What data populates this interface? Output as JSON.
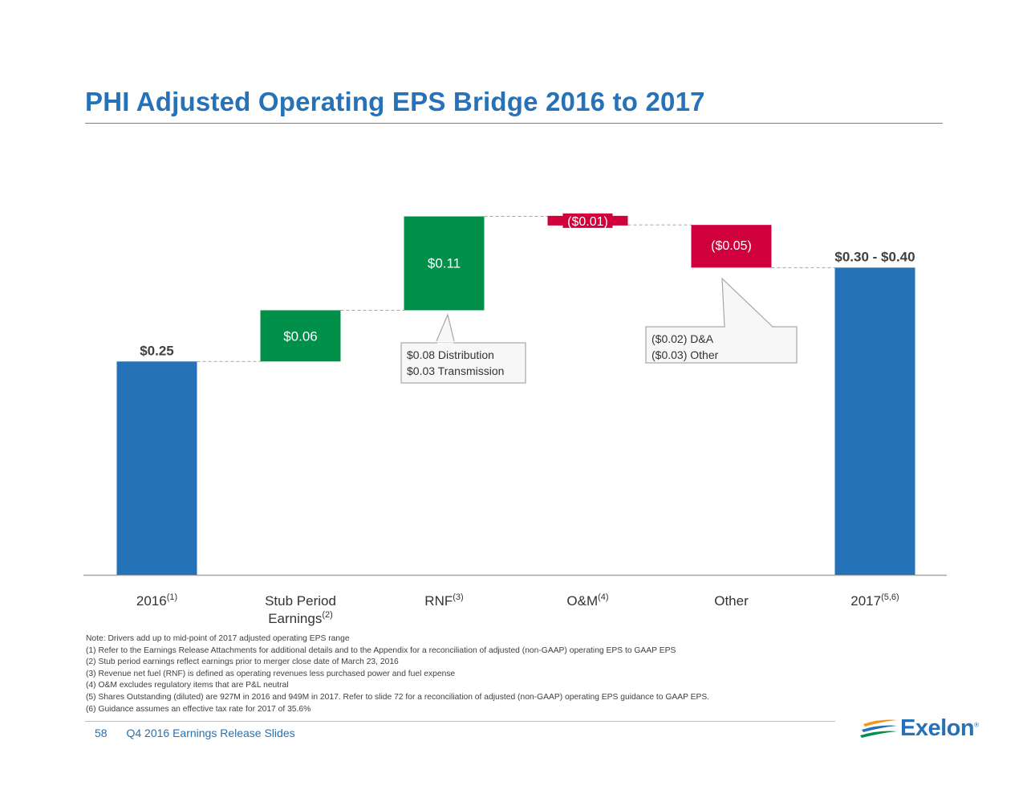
{
  "page": {
    "title": "PHI Adjusted Operating EPS Bridge 2016 to 2017",
    "footer_page": "58",
    "footer_text": "Q4 2016  Earnings Release Slides",
    "logo_text": "Exelon",
    "logo_mark": "®"
  },
  "colors": {
    "blue": "#2572b8",
    "green": "#00904a",
    "red": "#d0003c",
    "title": "#2572b8"
  },
  "chart_data": {
    "type": "bar",
    "subtype": "waterfall",
    "title": "PHI Adjusted Operating EPS Bridge 2016 to 2017",
    "ylim": [
      0,
      0.5
    ],
    "categories": [
      {
        "label": "2016",
        "sup": "(1)",
        "label2": "",
        "sup2": ""
      },
      {
        "label": "Stub Period",
        "sup": "",
        "label2": "Earnings",
        "sup2": "(2)"
      },
      {
        "label": "RNF",
        "sup": "(3)",
        "label2": "",
        "sup2": ""
      },
      {
        "label": "O&M",
        "sup": "(4)",
        "label2": "",
        "sup2": ""
      },
      {
        "label": "Other",
        "sup": "",
        "label2": "",
        "sup2": ""
      },
      {
        "label": "2017",
        "sup": "(5,6)",
        "label2": "",
        "sup2": ""
      }
    ],
    "bars": [
      {
        "kind": "total",
        "start": 0,
        "end": 0.25,
        "label": "$0.25",
        "color": "#2572b8"
      },
      {
        "kind": "increase",
        "start": 0.25,
        "end": 0.31,
        "label": "$0.06",
        "color": "#00904a"
      },
      {
        "kind": "increase",
        "start": 0.31,
        "end": 0.42,
        "label": "$0.11",
        "color": "#00904a"
      },
      {
        "kind": "decrease",
        "start": 0.42,
        "end": 0.41,
        "label": "($0.01)",
        "color": "#d0003c"
      },
      {
        "kind": "decrease",
        "start": 0.41,
        "end": 0.36,
        "label": "($0.05)",
        "color": "#d0003c"
      },
      {
        "kind": "total",
        "start": 0,
        "end": 0.36,
        "label": "$0.30 - $0.40",
        "color": "#2572b8"
      }
    ],
    "callouts": [
      {
        "bar": 2,
        "lines": [
          "$0.08 Distribution",
          "$0.03 Transmission"
        ]
      },
      {
        "bar": 4,
        "lines": [
          "($0.02) D&A",
          "($0.03) Other"
        ]
      }
    ]
  },
  "notes": [
    "Note: Drivers add up to mid-point of 2017 adjusted operating EPS range",
    "(1) Refer to the Earnings Release Attachments for additional details and to the Appendix for a reconciliation of adjusted (non-GAAP) operating EPS to GAAP EPS",
    "(2) Stub period earnings reflect earnings prior to merger close date of March 23, 2016",
    "(3) Revenue net fuel (RNF) is defined as operating revenues less purchased power and fuel expense",
    "(4) O&M excludes regulatory items that are P&L neutral",
    "(5) Shares Outstanding (diluted) are 927M in 2016 and 949M in 2017. Refer to slide 72 for a reconciliation of adjusted (non-GAAP) operating EPS guidance to GAAP EPS.",
    "(6) Guidance assumes an effective tax rate for 2017 of 35.6%"
  ]
}
